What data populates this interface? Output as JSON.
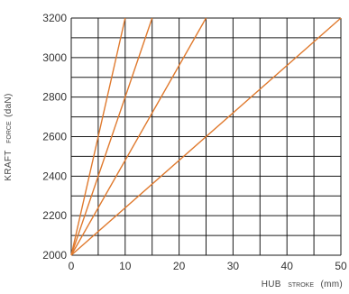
{
  "chart_data": {
    "type": "line",
    "title": "",
    "xlabel": {
      "main": "HUB",
      "sub": "STROKE",
      "unit": "(mm)"
    },
    "ylabel": {
      "main": "KRAFT",
      "sub": "FORCE",
      "unit": "(daN)"
    },
    "xlim": [
      0,
      50
    ],
    "ylim": [
      2000,
      3200
    ],
    "x_ticks": [
      0,
      10,
      20,
      30,
      40,
      50
    ],
    "y_ticks": [
      2000,
      2200,
      2400,
      2600,
      2800,
      3000,
      3200
    ],
    "grid": true,
    "grid_x_step": 5,
    "grid_y_step": 100,
    "line_color": "#e07a2e",
    "series": [
      {
        "x": [
          0,
          10
        ],
        "y": [
          2000,
          3200
        ]
      },
      {
        "x": [
          0,
          15
        ],
        "y": [
          2000,
          3200
        ]
      },
      {
        "x": [
          0,
          25
        ],
        "y": [
          2000,
          3200
        ]
      },
      {
        "x": [
          0,
          50
        ],
        "y": [
          2000,
          3200
        ]
      }
    ]
  }
}
